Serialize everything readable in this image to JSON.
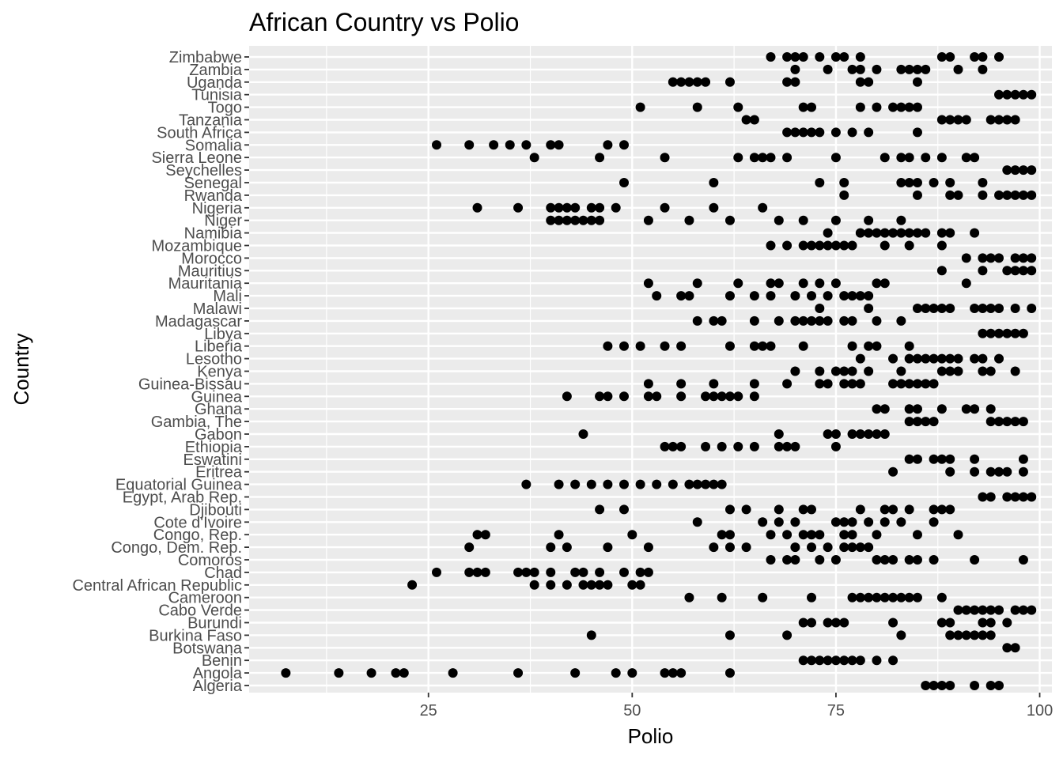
{
  "chart_data": {
    "type": "scatter",
    "title": "African Country vs Polio",
    "xlabel": "Polio",
    "ylabel": "Country",
    "xlim": [
      3,
      101.5
    ],
    "x_ticks": [
      25,
      50,
      75,
      100
    ],
    "grid": true,
    "legend": "none",
    "colors": {
      "panel": "#EBEBEB",
      "grid": "#FFFFFF",
      "point": "#000000",
      "text": "#4D4D4D",
      "title": "#000000"
    },
    "countries": [
      {
        "name": "Algeria",
        "values": [
          86,
          87,
          88,
          89,
          92,
          94,
          95
        ]
      },
      {
        "name": "Angola",
        "values": [
          7.5,
          14,
          18,
          21,
          22,
          28,
          36,
          43,
          48,
          50,
          54,
          55,
          56,
          62
        ]
      },
      {
        "name": "Benin",
        "values": [
          71,
          72,
          73,
          74,
          75,
          76,
          77,
          78,
          80,
          82
        ]
      },
      {
        "name": "Botswana",
        "values": [
          96,
          97
        ]
      },
      {
        "name": "Burkina Faso",
        "values": [
          45,
          62,
          69,
          83,
          89,
          90,
          91,
          92,
          93,
          94
        ]
      },
      {
        "name": "Burundi",
        "values": [
          71,
          72,
          74,
          75,
          76,
          82,
          88,
          89,
          93,
          94,
          96
        ]
      },
      {
        "name": "Cabo Verde",
        "values": [
          90,
          91,
          92,
          93,
          94,
          95,
          97,
          98,
          99
        ]
      },
      {
        "name": "Cameroon",
        "values": [
          57,
          61,
          66,
          72,
          77,
          78,
          79,
          80,
          81,
          82,
          83,
          84,
          85,
          88
        ]
      },
      {
        "name": "Central African Republic",
        "values": [
          23,
          38,
          40,
          42,
          44,
          45,
          46,
          47,
          50,
          51
        ]
      },
      {
        "name": "Chad",
        "values": [
          26,
          30,
          31,
          32,
          36,
          37,
          38,
          40,
          43,
          44,
          46,
          49,
          51,
          52
        ]
      },
      {
        "name": "Comoros",
        "values": [
          67,
          69,
          70,
          73,
          75,
          80,
          81,
          82,
          84,
          85,
          87,
          92,
          98
        ]
      },
      {
        "name": "Congo, Dem. Rep.",
        "values": [
          30,
          40,
          42,
          47,
          52,
          60,
          62,
          64,
          70,
          72,
          74,
          76,
          77,
          78,
          79
        ]
      },
      {
        "name": "Congo, Rep.",
        "values": [
          31,
          32,
          41,
          50,
          61,
          62,
          67,
          69,
          71,
          72,
          73,
          76,
          77,
          80,
          85,
          90
        ]
      },
      {
        "name": "Cote d'Ivoire",
        "values": [
          58,
          66,
          68,
          70,
          75,
          76,
          77,
          79,
          81,
          83,
          87
        ]
      },
      {
        "name": "Djibouti",
        "values": [
          46,
          49,
          62,
          64,
          68,
          71,
          72,
          78,
          81,
          82,
          84,
          87,
          88,
          89
        ]
      },
      {
        "name": "Egypt, Arab Rep.",
        "values": [
          93,
          94,
          96,
          97,
          98,
          99
        ]
      },
      {
        "name": "Equatorial Guinea",
        "values": [
          37,
          41,
          43,
          45,
          47,
          49,
          51,
          53,
          55,
          57,
          58,
          59,
          60,
          61
        ]
      },
      {
        "name": "Eritrea",
        "values": [
          82,
          89,
          92,
          94,
          95,
          96,
          98
        ]
      },
      {
        "name": "Eswatini",
        "values": [
          84,
          85,
          87,
          88,
          89,
          92,
          98
        ]
      },
      {
        "name": "Ethiopia",
        "values": [
          54,
          55,
          56,
          59,
          61,
          63,
          65,
          68,
          69,
          70,
          75
        ]
      },
      {
        "name": "Gabon",
        "values": [
          44,
          68,
          74,
          75,
          77,
          78,
          79,
          80,
          81
        ]
      },
      {
        "name": "Gambia, The",
        "values": [
          84,
          85,
          86,
          87,
          94,
          95,
          96,
          97,
          98
        ]
      },
      {
        "name": "Ghana",
        "values": [
          80,
          81,
          84,
          85,
          88,
          91,
          92,
          94
        ]
      },
      {
        "name": "Guinea",
        "values": [
          42,
          46,
          47,
          49,
          52,
          53,
          56,
          59,
          60,
          61,
          62,
          63,
          65
        ]
      },
      {
        "name": "Guinea-Bissau",
        "values": [
          52,
          56,
          60,
          65,
          69,
          73,
          74,
          76,
          77,
          78,
          82,
          83,
          84,
          85,
          86,
          87
        ]
      },
      {
        "name": "Kenya",
        "values": [
          70,
          73,
          75,
          76,
          77,
          79,
          83,
          88,
          89,
          90,
          93,
          94,
          97
        ]
      },
      {
        "name": "Lesotho",
        "values": [
          78,
          82,
          84,
          85,
          86,
          87,
          88,
          89,
          90,
          92,
          93,
          95
        ]
      },
      {
        "name": "Liberia",
        "values": [
          47,
          49,
          51,
          54,
          56,
          62,
          65,
          66,
          67,
          71,
          77,
          79,
          80,
          84
        ]
      },
      {
        "name": "Libya",
        "values": [
          93,
          94,
          95,
          96,
          97,
          98
        ]
      },
      {
        "name": "Madagascar",
        "values": [
          58,
          60,
          61,
          65,
          68,
          70,
          71,
          72,
          73,
          74,
          76,
          77,
          80,
          83
        ]
      },
      {
        "name": "Malawi",
        "values": [
          73,
          79,
          85,
          86,
          87,
          88,
          89,
          92,
          93,
          94,
          95,
          97,
          99
        ]
      },
      {
        "name": "Mali",
        "values": [
          53,
          56,
          57,
          62,
          65,
          67,
          70,
          72,
          74,
          76,
          77,
          78,
          79
        ]
      },
      {
        "name": "Mauritania",
        "values": [
          52,
          58,
          63,
          67,
          68,
          71,
          73,
          75,
          80,
          81,
          91
        ]
      },
      {
        "name": "Mauritius",
        "values": [
          88,
          93,
          96,
          97,
          98,
          99
        ]
      },
      {
        "name": "Morocco",
        "values": [
          91,
          93,
          94,
          95,
          97,
          98,
          99
        ]
      },
      {
        "name": "Mozambique",
        "values": [
          67,
          69,
          71,
          72,
          73,
          74,
          75,
          76,
          77,
          81,
          84,
          88
        ]
      },
      {
        "name": "Namibia",
        "values": [
          74,
          78,
          79,
          80,
          81,
          82,
          83,
          84,
          85,
          86,
          88,
          89,
          92
        ]
      },
      {
        "name": "Niger",
        "values": [
          40,
          41,
          42,
          43,
          44,
          45,
          46,
          52,
          57,
          62,
          68,
          71,
          75,
          79,
          83
        ]
      },
      {
        "name": "Nigeria",
        "values": [
          31,
          36,
          40,
          41,
          42,
          43,
          45,
          46,
          48,
          54,
          60,
          66
        ]
      },
      {
        "name": "Rwanda",
        "values": [
          76,
          85,
          89,
          90,
          93,
          95,
          96,
          97,
          98,
          99
        ]
      },
      {
        "name": "Senegal",
        "values": [
          49,
          60,
          73,
          76,
          83,
          84,
          85,
          87,
          89,
          93
        ]
      },
      {
        "name": "Seychelles",
        "values": [
          96,
          97,
          98,
          99
        ]
      },
      {
        "name": "Sierra Leone",
        "values": [
          38,
          46,
          54,
          63,
          65,
          66,
          67,
          69,
          75,
          81,
          83,
          84,
          86,
          88,
          91,
          92
        ]
      },
      {
        "name": "Somalia",
        "values": [
          26,
          30,
          33,
          35,
          37,
          40,
          41,
          47,
          49
        ]
      },
      {
        "name": "South Africa",
        "values": [
          69,
          70,
          71,
          72,
          73,
          75,
          77,
          79,
          85
        ]
      },
      {
        "name": "Tanzania",
        "values": [
          64,
          65,
          88,
          89,
          90,
          91,
          94,
          95,
          96,
          97
        ]
      },
      {
        "name": "Togo",
        "values": [
          51,
          58,
          63,
          71,
          72,
          78,
          80,
          82,
          83,
          84,
          85
        ]
      },
      {
        "name": "Tunisia",
        "values": [
          95,
          96,
          97,
          98,
          99
        ]
      },
      {
        "name": "Uganda",
        "values": [
          55,
          56,
          57,
          58,
          59,
          62,
          69,
          70,
          78,
          79,
          85
        ]
      },
      {
        "name": "Zambia",
        "values": [
          70,
          74,
          77,
          78,
          80,
          83,
          84,
          85,
          86,
          90,
          93
        ]
      },
      {
        "name": "Zimbabwe",
        "values": [
          67,
          69,
          70,
          71,
          73,
          75,
          76,
          78,
          88,
          89,
          92,
          93,
          95
        ]
      }
    ]
  }
}
